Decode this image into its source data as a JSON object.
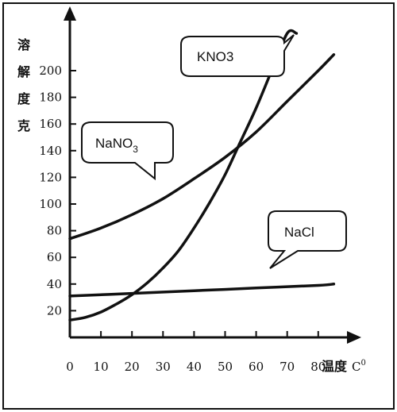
{
  "chart_data": {
    "type": "line",
    "ylabel_chars": [
      "溶",
      "解",
      "度",
      "克"
    ],
    "xlabel": "温度",
    "xunit": "C",
    "xunit_sup": "0",
    "x_ticks": [
      0,
      10,
      20,
      30,
      40,
      50,
      60,
      70,
      80
    ],
    "y_ticks": [
      20,
      40,
      60,
      80,
      100,
      120,
      140,
      160,
      180,
      200
    ],
    "xlim": [
      0,
      90
    ],
    "ylim": [
      0,
      230
    ],
    "grid": false,
    "series": [
      {
        "name": "KNO3",
        "callout": {
          "text": "KNO3"
        },
        "x": [
          0,
          5,
          10,
          15,
          20,
          25,
          30,
          35,
          40,
          45,
          50,
          55,
          60,
          65,
          70,
          73
        ],
        "y": [
          13,
          15,
          19,
          25,
          32,
          41,
          52,
          65,
          82,
          101,
          122,
          147,
          172,
          200,
          232,
          232
        ]
      },
      {
        "name": "NaNO3",
        "callout": {
          "text": "NaNO",
          "sub": "3"
        },
        "x": [
          0,
          10,
          20,
          30,
          40,
          50,
          60,
          70,
          80,
          85
        ],
        "y": [
          74,
          82,
          92,
          104,
          119,
          135,
          154,
          177,
          200,
          212
        ]
      },
      {
        "name": "NaCl",
        "callout": {
          "text": "NaCl"
        },
        "x": [
          0,
          20,
          40,
          60,
          80,
          85
        ],
        "y": [
          31,
          33,
          35,
          37,
          39,
          40
        ]
      }
    ]
  }
}
